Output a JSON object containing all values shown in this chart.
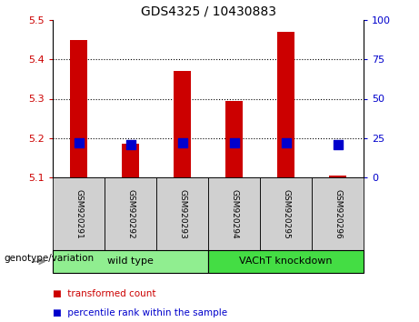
{
  "title": "GDS4325 / 10430883",
  "categories": [
    "GSM920291",
    "GSM920292",
    "GSM920293",
    "GSM920294",
    "GSM920295",
    "GSM920296"
  ],
  "transformed_counts": [
    5.45,
    5.185,
    5.37,
    5.295,
    5.47,
    5.105
  ],
  "percentile_ranks": [
    22,
    21,
    22,
    22,
    22,
    21
  ],
  "ylim_left": [
    5.1,
    5.5
  ],
  "ylim_right": [
    0,
    100
  ],
  "yticks_left": [
    5.1,
    5.2,
    5.3,
    5.4,
    5.5
  ],
  "yticks_right": [
    0,
    25,
    50,
    75,
    100
  ],
  "bar_bottom": 5.1,
  "red_color": "#cc0000",
  "blue_color": "#0000cc",
  "groups": [
    {
      "label": "wild type",
      "span": [
        0,
        3
      ],
      "color": "#90ee90"
    },
    {
      "label": "VAChT knockdown",
      "span": [
        3,
        6
      ],
      "color": "#44dd44"
    }
  ],
  "group_label_prefix": "genotype/variation",
  "legend_items": [
    {
      "label": "transformed count",
      "color": "#cc0000"
    },
    {
      "label": "percentile rank within the sample",
      "color": "#0000cc"
    }
  ],
  "bar_width": 0.35,
  "blue_square_size": 55,
  "title_fontsize": 10,
  "tick_fontsize": 8,
  "label_fontsize": 7.5,
  "legend_fontsize": 7.5,
  "cat_fontsize": 6.5,
  "group_fontsize": 8
}
